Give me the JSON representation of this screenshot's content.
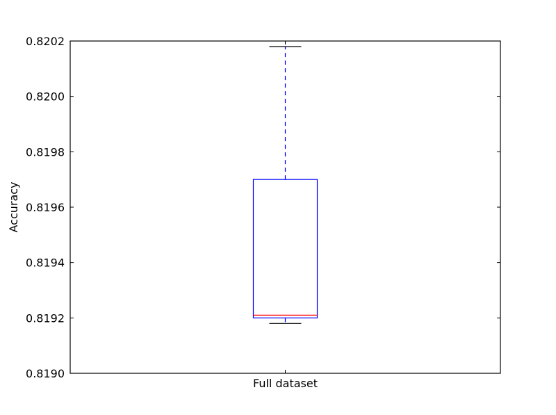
{
  "chart_data": {
    "type": "box",
    "title": "",
    "xlabel": "",
    "ylabel": "Accuracy",
    "ylim": [
      0.819,
      0.8202
    ],
    "yticks": [
      "0.8190",
      "0.8192",
      "0.8194",
      "0.8196",
      "0.8198",
      "0.8200",
      "0.8202"
    ],
    "categories": [
      "Full dataset"
    ],
    "boxes": [
      {
        "category": "Full dataset",
        "whisker_low": 0.81918,
        "q1": 0.8192,
        "median": 0.81921,
        "q3": 0.8197,
        "whisker_high": 0.82018
      }
    ],
    "grid": false,
    "colors": {
      "box": "#0000ff",
      "whisker": "#0000ff",
      "median": "#ff0000",
      "cap": "#000000",
      "axes": "#000000"
    }
  }
}
